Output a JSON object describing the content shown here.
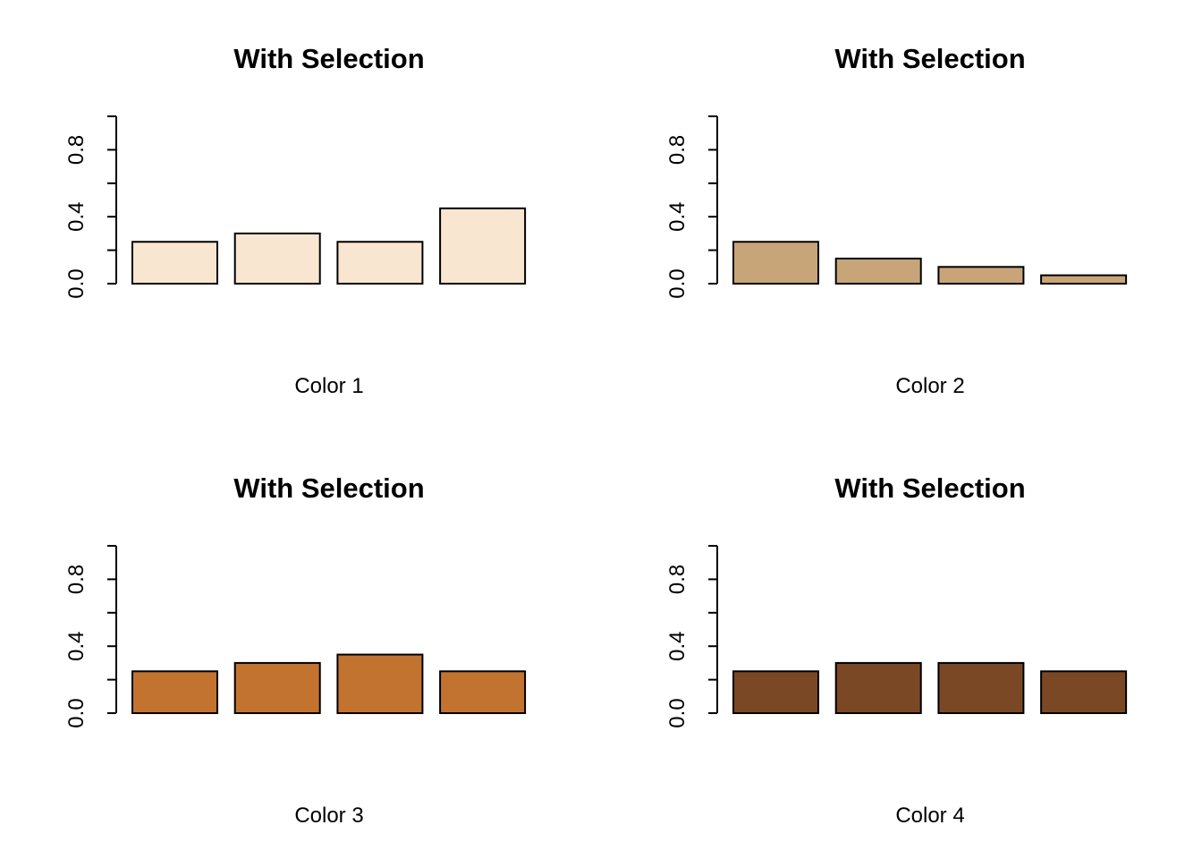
{
  "chart_data": [
    {
      "type": "bar",
      "title": "With Selection",
      "xlabel": "Color 1",
      "ylabel": "",
      "ylim": [
        0,
        1
      ],
      "yticks": [
        "0.0",
        "0.4",
        "0.8"
      ],
      "values": [
        0.25,
        0.3,
        0.25,
        0.45
      ],
      "color": "#F8E6D0",
      "grid": false
    },
    {
      "type": "bar",
      "title": "With Selection",
      "xlabel": "Color 2",
      "ylabel": "",
      "ylim": [
        0,
        1
      ],
      "yticks": [
        "0.0",
        "0.4",
        "0.8"
      ],
      "values": [
        0.25,
        0.15,
        0.1,
        0.05
      ],
      "color": "#C8A578",
      "grid": false
    },
    {
      "type": "bar",
      "title": "With Selection",
      "xlabel": "Color 3",
      "ylabel": "",
      "ylim": [
        0,
        1
      ],
      "yticks": [
        "0.0",
        "0.4",
        "0.8"
      ],
      "values": [
        0.25,
        0.3,
        0.35,
        0.25
      ],
      "color": "#C27330",
      "grid": false
    },
    {
      "type": "bar",
      "title": "With Selection",
      "xlabel": "Color 4",
      "ylabel": "",
      "ylim": [
        0,
        1
      ],
      "yticks": [
        "0.0",
        "0.4",
        "0.8"
      ],
      "values": [
        0.25,
        0.3,
        0.3,
        0.25
      ],
      "color": "#7A4824",
      "grid": false
    }
  ]
}
